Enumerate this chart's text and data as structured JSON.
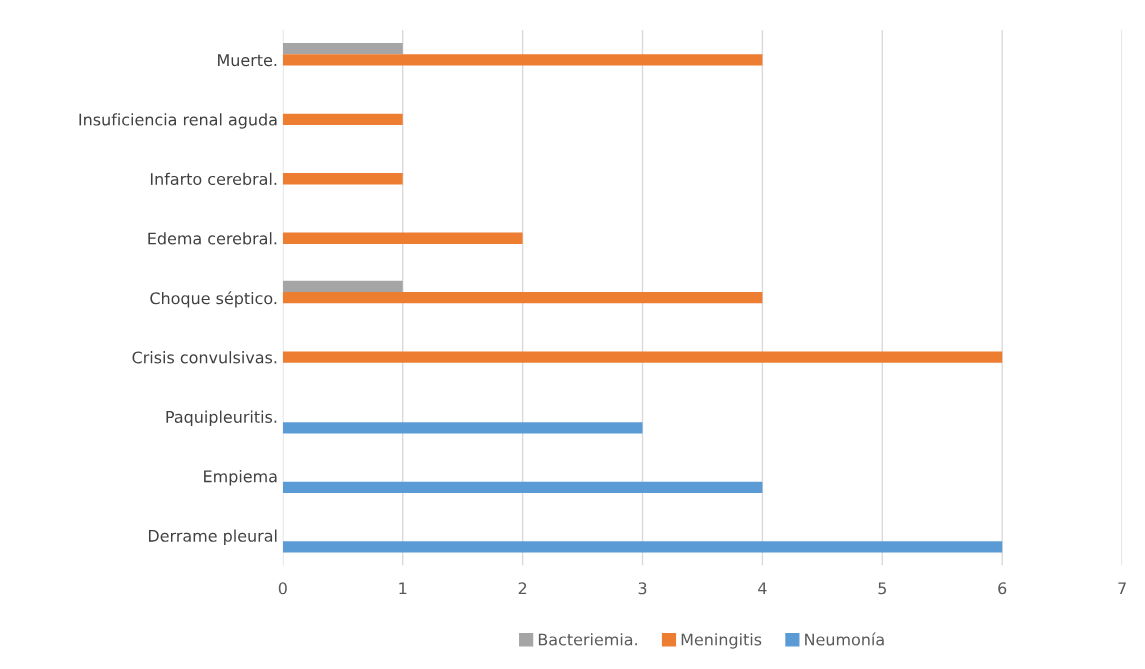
{
  "chart_data": {
    "type": "bar",
    "orientation": "horizontal",
    "categories": [
      "Muerte.",
      "Insuficiencia renal aguda",
      "Infarto cerebral.",
      "Edema cerebral.",
      "Choque séptico.",
      "Crisis convulsivas.",
      "Paquipleuritis.",
      "Empiema",
      "Derrame pleural"
    ],
    "series": [
      {
        "name": "Bacteriemia.",
        "color": "#a5a5a5",
        "values": [
          1,
          null,
          null,
          null,
          1,
          null,
          null,
          null,
          null
        ]
      },
      {
        "name": "Meningitis",
        "color": "#ed7d31",
        "values": [
          4,
          1,
          1,
          2,
          4,
          6,
          null,
          null,
          null
        ]
      },
      {
        "name": "Neumonía",
        "color": "#5b9bd5",
        "values": [
          null,
          null,
          null,
          null,
          null,
          null,
          3,
          4,
          6
        ]
      }
    ],
    "xlim": [
      0,
      7
    ],
    "xticks": [
      0,
      1,
      2,
      3,
      4,
      5,
      6,
      7
    ],
    "grid": "x",
    "legend": "bottom"
  }
}
